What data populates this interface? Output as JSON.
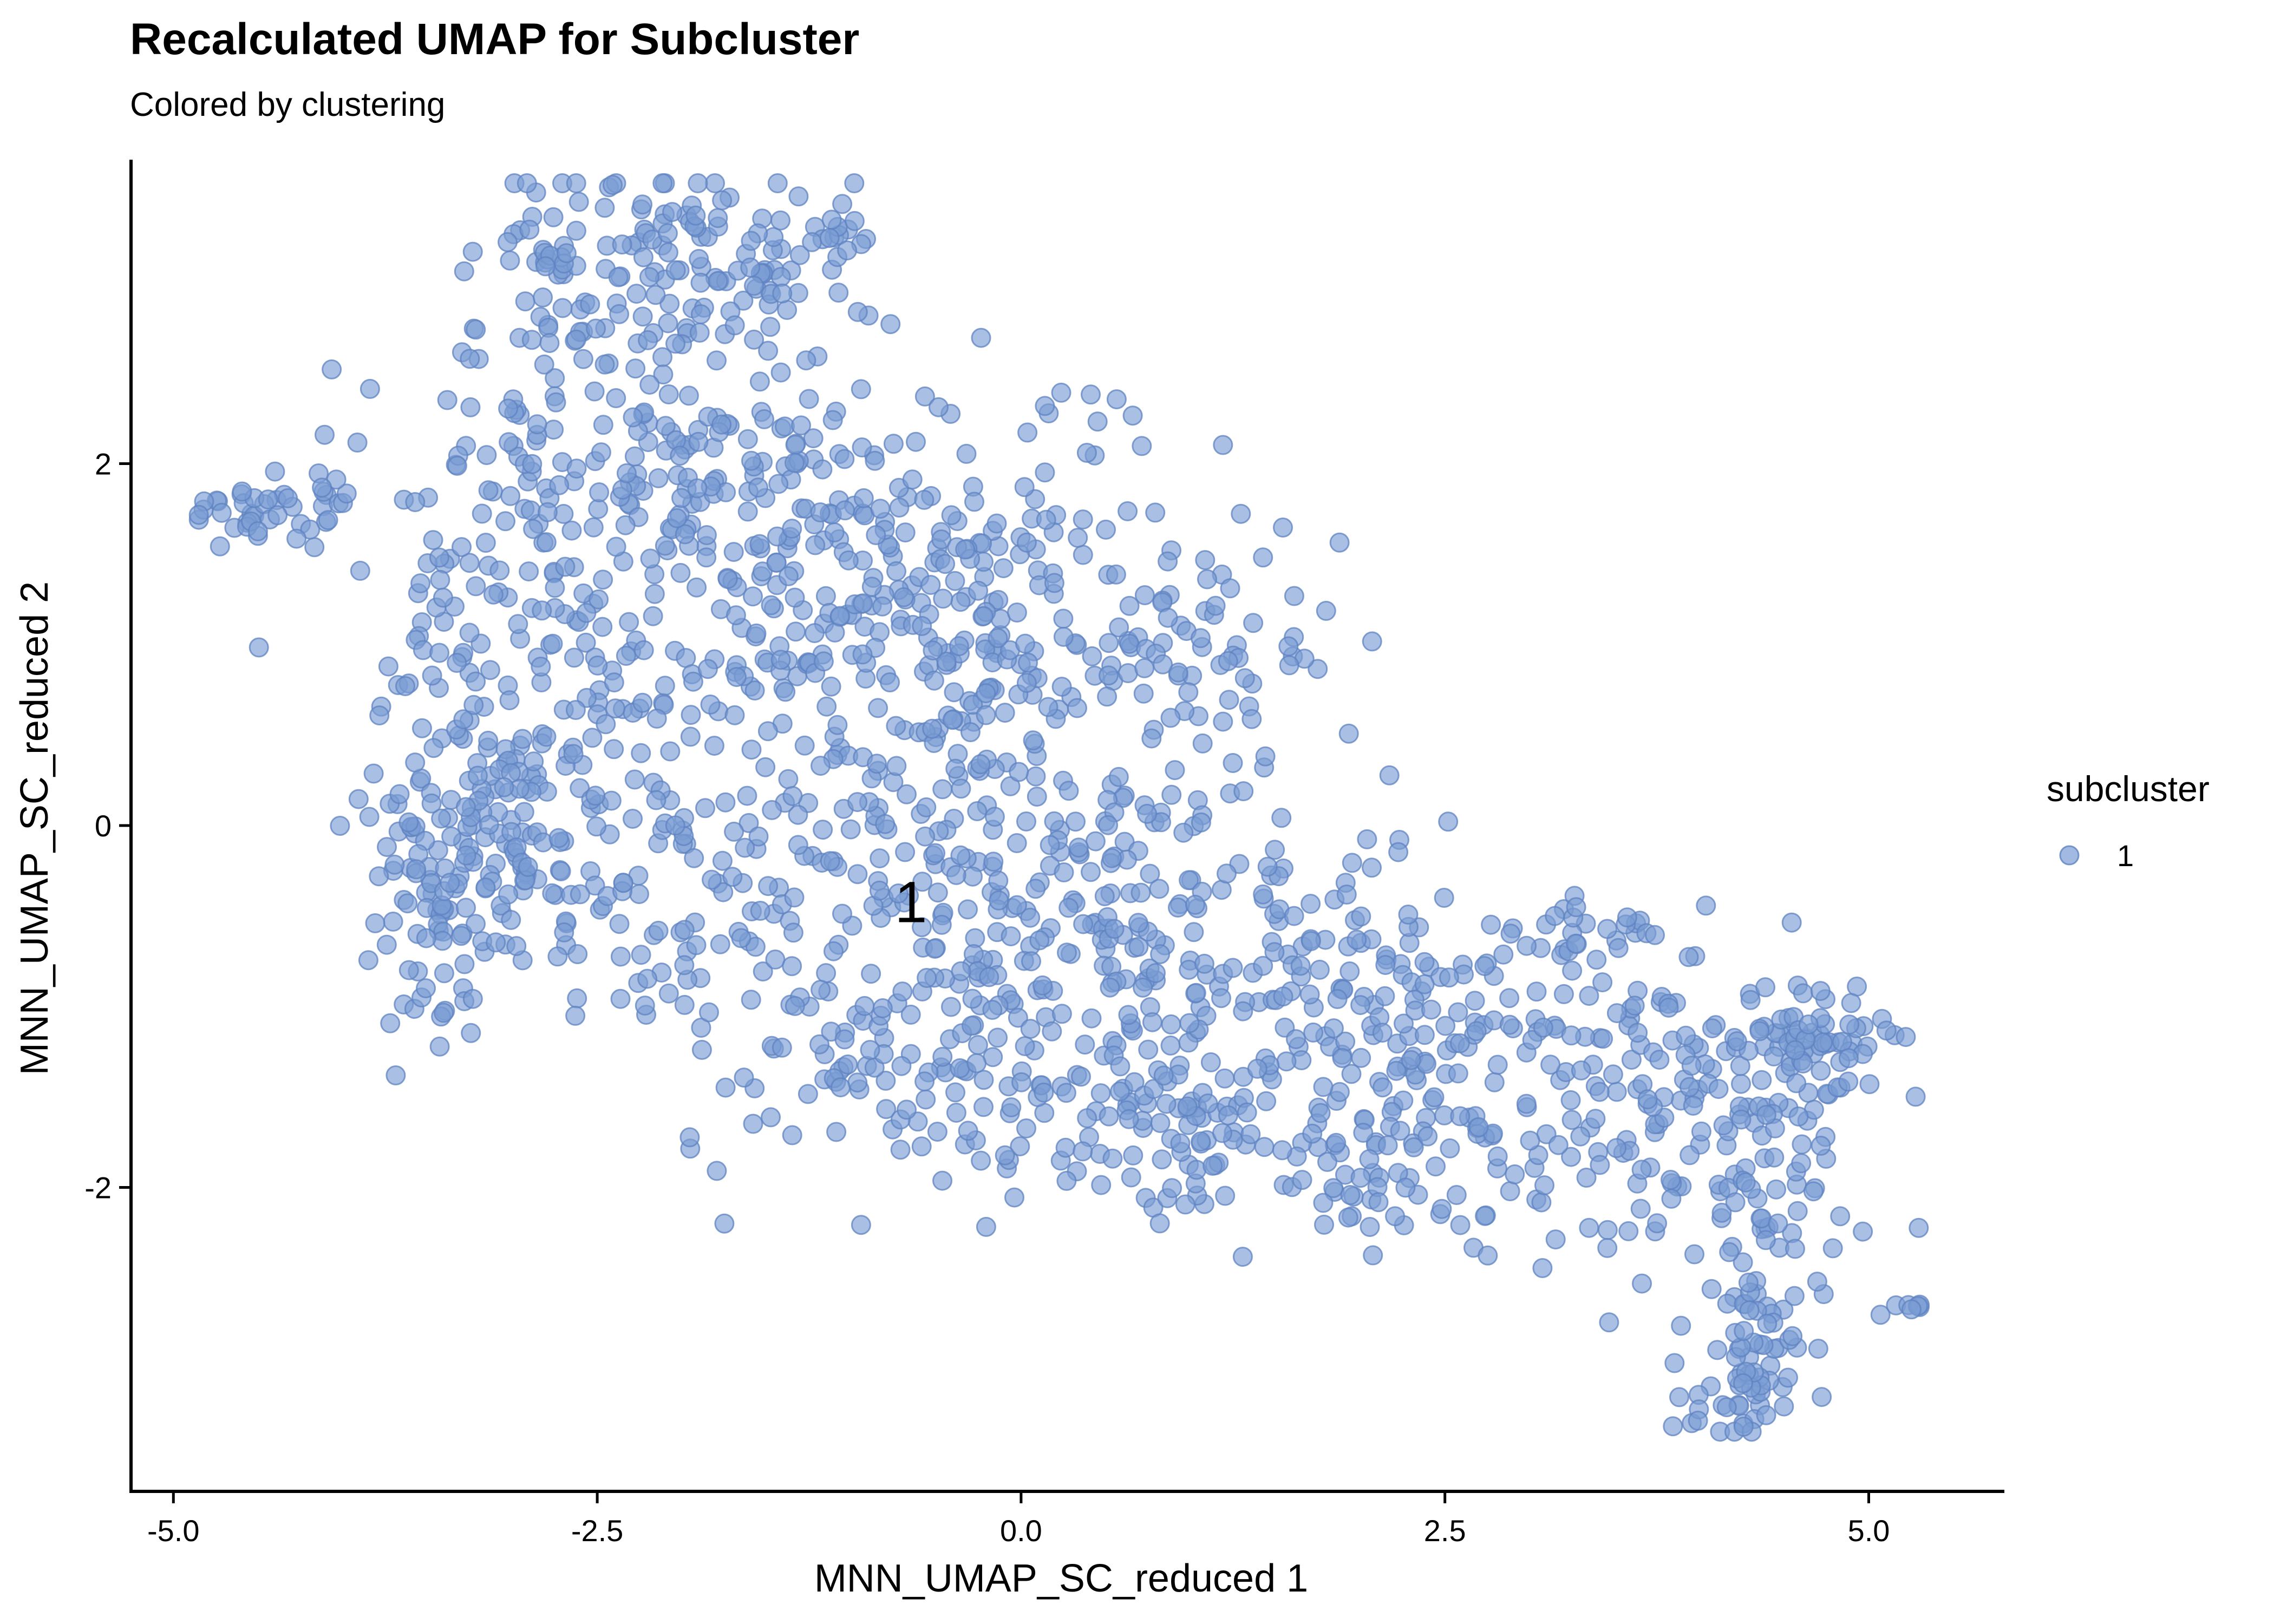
{
  "chart_data": {
    "type": "scatter",
    "title": "Recalculated UMAP for Subcluster",
    "subtitle": "Colored by clustering",
    "xlabel": "MNN_UMAP_SC_reduced 1",
    "ylabel": "MNN_UMAP_SC_reduced 2",
    "xlim": [
      -5.25,
      5.8
    ],
    "ylim": [
      -3.68,
      3.68
    ],
    "x_ticks": [
      -5.0,
      -2.5,
      0.0,
      2.5,
      5.0
    ],
    "x_tick_labels": [
      "-5.0",
      "-2.5",
      "0.0",
      "2.5",
      "5.0"
    ],
    "y_ticks": [
      -2,
      0,
      2
    ],
    "y_tick_labels": [
      "-2",
      "0",
      "2"
    ],
    "grid": false,
    "legend": {
      "title": "subcluster",
      "placement": "right",
      "entries": [
        "1"
      ]
    },
    "point_color": "#7b9cd4",
    "cluster_labels": [
      {
        "text": "1",
        "x": -0.65,
        "y": -0.42
      }
    ],
    "series": [
      {
        "name": "1",
        "clouds": [
          {
            "cx": -1.9,
            "cy": 3.2,
            "sx": 0.45,
            "sy": 0.25,
            "n": 90
          },
          {
            "cx": -2.8,
            "cy": 3.1,
            "sx": 0.2,
            "sy": 0.3,
            "n": 40
          },
          {
            "cx": -1.05,
            "cy": 3.3,
            "sx": 0.15,
            "sy": 0.06,
            "n": 10
          },
          {
            "cx": -4.4,
            "cy": 1.75,
            "sx": 0.28,
            "sy": 0.08,
            "n": 40
          },
          {
            "cx": -2.0,
            "cy": 2.1,
            "sx": 0.85,
            "sy": 0.55,
            "n": 230
          },
          {
            "cx": -1.3,
            "cy": 1.0,
            "sx": 1.1,
            "sy": 0.55,
            "n": 260
          },
          {
            "cx": -3.1,
            "cy": 0.5,
            "sx": 0.35,
            "sy": 0.6,
            "n": 150
          },
          {
            "cx": -3.4,
            "cy": -0.4,
            "sx": 0.3,
            "sy": 0.35,
            "n": 80
          },
          {
            "cx": -2.3,
            "cy": -0.5,
            "sx": 0.5,
            "sy": 0.4,
            "n": 70
          },
          {
            "cx": 0.0,
            "cy": 1.2,
            "sx": 0.6,
            "sy": 0.5,
            "n": 140
          },
          {
            "cx": -0.4,
            "cy": -0.2,
            "sx": 0.9,
            "sy": 0.5,
            "n": 180
          },
          {
            "cx": -0.6,
            "cy": -1.3,
            "sx": 0.7,
            "sy": 0.3,
            "n": 110
          },
          {
            "cx": 0.6,
            "cy": -0.8,
            "sx": 0.6,
            "sy": 0.5,
            "n": 110
          },
          {
            "cx": 1.0,
            "cy": 0.9,
            "sx": 0.35,
            "sy": 0.3,
            "n": 40
          },
          {
            "cx": 0.9,
            "cy": -1.7,
            "sx": 0.6,
            "sy": 0.2,
            "n": 80
          },
          {
            "cx": 1.8,
            "cy": -0.9,
            "sx": 0.6,
            "sy": 0.5,
            "n": 140
          },
          {
            "cx": 2.1,
            "cy": -1.9,
            "sx": 0.4,
            "sy": 0.3,
            "n": 60
          },
          {
            "cx": 3.1,
            "cy": -1.4,
            "sx": 0.55,
            "sy": 0.4,
            "n": 90
          },
          {
            "cx": 3.3,
            "cy": -0.6,
            "sx": 0.3,
            "sy": 0.1,
            "n": 25
          },
          {
            "cx": 4.1,
            "cy": -1.7,
            "sx": 0.45,
            "sy": 0.45,
            "n": 160
          },
          {
            "cx": 4.75,
            "cy": -1.2,
            "sx": 0.2,
            "sy": 0.15,
            "n": 50
          },
          {
            "cx": 4.3,
            "cy": -3.0,
            "sx": 0.18,
            "sy": 0.25,
            "n": 70
          },
          {
            "cx": 5.25,
            "cy": -2.65,
            "sx": 0.04,
            "sy": 0.02,
            "n": 6
          }
        ]
      }
    ]
  }
}
